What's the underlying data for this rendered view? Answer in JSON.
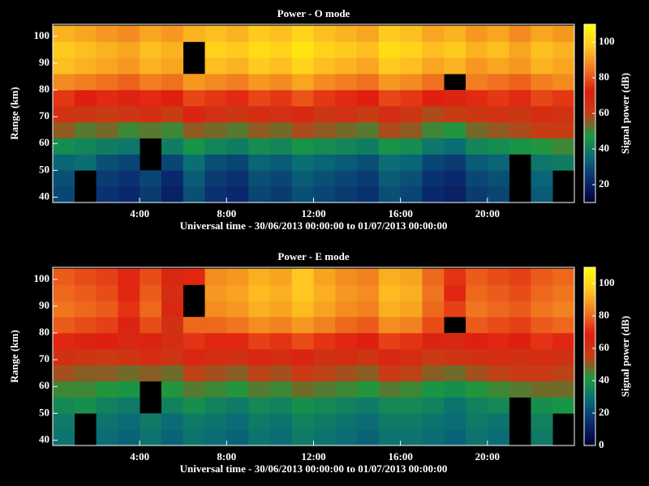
{
  "chart_data": [
    {
      "type": "heatmap",
      "title": "Power - O mode",
      "xlabel": "Universal time - 30/06/2013 00:00:00 to 01/07/2013 00:00:00",
      "ylabel": "Range (km)",
      "colorbar_label": "Signal power (dB)",
      "xbins": [
        0,
        1,
        2,
        3,
        4,
        5,
        6,
        7,
        8,
        9,
        10,
        11,
        12,
        13,
        14,
        15,
        16,
        17,
        18,
        19,
        20,
        21,
        22,
        23,
        24
      ],
      "ybins": [
        38,
        44,
        50,
        56,
        62,
        68,
        74,
        80,
        86,
        92,
        98,
        104
      ],
      "xlim": [
        0,
        24
      ],
      "ylim": [
        38,
        104.5
      ],
      "xticks": [
        {
          "value": 4,
          "label": "4:00"
        },
        {
          "value": 8,
          "label": "8:00"
        },
        {
          "value": 12,
          "label": "12:00"
        },
        {
          "value": 16,
          "label": "16:00"
        },
        {
          "value": 20,
          "label": "20:00"
        }
      ],
      "yticks": [
        40,
        50,
        60,
        70,
        80,
        90,
        100
      ],
      "clim": [
        10,
        110
      ],
      "cticks": [
        20,
        40,
        60,
        80,
        100
      ],
      "colormap": [
        "#000030",
        "#0a2a70",
        "#0a6a78",
        "#1a9a40",
        "#c83c14",
        "#e01e10",
        "#f07820",
        "#ffc820",
        "#ffff00"
      ],
      "values": [
        [
          28,
          null,
          24,
          22,
          26,
          20,
          30,
          24,
          22,
          28,
          26,
          30,
          28,
          26,
          24,
          30,
          28,
          22,
          20,
          26,
          28,
          null,
          32,
          null
        ],
        [
          30,
          null,
          26,
          24,
          28,
          22,
          32,
          26,
          24,
          30,
          28,
          32,
          30,
          28,
          26,
          32,
          30,
          24,
          22,
          28,
          30,
          null,
          34,
          null
        ],
        [
          34,
          36,
          30,
          28,
          null,
          28,
          36,
          30,
          28,
          34,
          32,
          36,
          34,
          32,
          30,
          36,
          34,
          28,
          26,
          32,
          34,
          null,
          38,
          40
        ],
        [
          44,
          42,
          40,
          38,
          null,
          40,
          46,
          42,
          40,
          44,
          42,
          46,
          44,
          42,
          40,
          46,
          44,
          38,
          36,
          42,
          44,
          46,
          48,
          50
        ],
        [
          56,
          52,
          54,
          50,
          52,
          50,
          56,
          54,
          52,
          56,
          54,
          58,
          56,
          54,
          52,
          58,
          56,
          50,
          48,
          54,
          56,
          58,
          60,
          60
        ],
        [
          64,
          62,
          60,
          62,
          66,
          60,
          70,
          64,
          62,
          66,
          64,
          68,
          62,
          64,
          60,
          66,
          62,
          58,
          60,
          62,
          64,
          62,
          66,
          64
        ],
        [
          76,
          72,
          74,
          70,
          74,
          72,
          78,
          76,
          74,
          78,
          76,
          80,
          76,
          74,
          72,
          78,
          76,
          72,
          70,
          74,
          76,
          74,
          78,
          76
        ],
        [
          88,
          86,
          84,
          82,
          86,
          84,
          90,
          88,
          86,
          90,
          88,
          92,
          88,
          86,
          84,
          90,
          88,
          84,
          null,
          86,
          84,
          82,
          86,
          88
        ],
        [
          96,
          94,
          92,
          90,
          94,
          92,
          null,
          96,
          94,
          98,
          96,
          100,
          96,
          94,
          92,
          98,
          96,
          92,
          94,
          90,
          92,
          90,
          94,
          92
        ],
        [
          98,
          96,
          94,
          92,
          96,
          94,
          null,
          100,
          98,
          102,
          100,
          104,
          100,
          98,
          96,
          102,
          100,
          96,
          98,
          94,
          96,
          92,
          96,
          94
        ],
        [
          94,
          92,
          90,
          88,
          92,
          90,
          94,
          96,
          94,
          98,
          96,
          100,
          96,
          94,
          92,
          98,
          96,
          92,
          94,
          90,
          92,
          88,
          92,
          90
        ]
      ]
    },
    {
      "type": "heatmap",
      "title": "Power - E mode",
      "xlabel": "Universal time - 30/06/2013 00:00:00 to 01/07/2013 00:00:00",
      "ylabel": "Range (km)",
      "colorbar_label": "Signal power (dB)",
      "xbins": [
        0,
        1,
        2,
        3,
        4,
        5,
        6,
        7,
        8,
        9,
        10,
        11,
        12,
        13,
        14,
        15,
        16,
        17,
        18,
        19,
        20,
        21,
        22,
        23,
        24
      ],
      "ybins": [
        38,
        44,
        50,
        56,
        62,
        68,
        74,
        80,
        86,
        92,
        98,
        104
      ],
      "xlim": [
        0,
        24
      ],
      "ylim": [
        38,
        104.5
      ],
      "xticks": [
        {
          "value": 4,
          "label": "4:00"
        },
        {
          "value": 8,
          "label": "8:00"
        },
        {
          "value": 12,
          "label": "12:00"
        },
        {
          "value": 16,
          "label": "16:00"
        },
        {
          "value": 20,
          "label": "20:00"
        }
      ],
      "yticks": [
        40,
        50,
        60,
        70,
        80,
        90,
        100
      ],
      "clim": [
        0,
        110
      ],
      "cticks": [
        0,
        20,
        40,
        60,
        80,
        100
      ],
      "colormap": [
        "#000030",
        "#0a2a70",
        "#0a6a78",
        "#1a9a40",
        "#c83c14",
        "#e01e10",
        "#f07820",
        "#ffc820",
        "#ffff00"
      ],
      "values": [
        [
          30,
          null,
          28,
          26,
          30,
          26,
          30,
          28,
          26,
          30,
          28,
          32,
          30,
          28,
          26,
          30,
          30,
          28,
          26,
          30,
          28,
          null,
          32,
          null
        ],
        [
          32,
          null,
          30,
          28,
          32,
          28,
          32,
          30,
          28,
          32,
          30,
          34,
          32,
          30,
          28,
          32,
          32,
          30,
          28,
          32,
          30,
          null,
          34,
          null
        ],
        [
          36,
          38,
          34,
          32,
          null,
          34,
          38,
          34,
          32,
          36,
          34,
          38,
          36,
          34,
          32,
          36,
          36,
          34,
          30,
          34,
          36,
          null,
          38,
          40
        ],
        [
          44,
          44,
          42,
          40,
          null,
          42,
          46,
          44,
          42,
          46,
          44,
          48,
          46,
          44,
          42,
          46,
          44,
          40,
          38,
          42,
          44,
          46,
          48,
          48
        ],
        [
          52,
          50,
          50,
          48,
          50,
          48,
          54,
          52,
          50,
          54,
          52,
          56,
          54,
          52,
          50,
          56,
          54,
          50,
          48,
          52,
          54,
          56,
          56,
          54
        ],
        [
          60,
          58,
          56,
          58,
          62,
          58,
          64,
          62,
          60,
          64,
          62,
          66,
          60,
          62,
          58,
          64,
          62,
          56,
          58,
          60,
          62,
          60,
          62,
          60
        ],
        [
          70,
          66,
          68,
          64,
          66,
          62,
          72,
          70,
          70,
          74,
          72,
          76,
          72,
          70,
          68,
          74,
          72,
          66,
          64,
          68,
          70,
          68,
          72,
          70
        ],
        [
          78,
          76,
          74,
          66,
          76,
          60,
          80,
          80,
          82,
          86,
          84,
          88,
          84,
          80,
          78,
          86,
          84,
          76,
          null,
          78,
          76,
          74,
          78,
          80
        ],
        [
          82,
          80,
          78,
          72,
          80,
          64,
          null,
          86,
          88,
          92,
          90,
          94,
          90,
          86,
          84,
          92,
          90,
          80,
          74,
          82,
          80,
          78,
          82,
          84
        ],
        [
          80,
          78,
          76,
          70,
          78,
          62,
          null,
          88,
          90,
          94,
          92,
          96,
          92,
          88,
          86,
          94,
          92,
          82,
          70,
          80,
          78,
          76,
          80,
          82
        ],
        [
          78,
          76,
          74,
          70,
          76,
          64,
          70,
          86,
          88,
          92,
          90,
          96,
          90,
          86,
          84,
          92,
          90,
          80,
          72,
          78,
          76,
          74,
          78,
          80
        ]
      ]
    }
  ]
}
